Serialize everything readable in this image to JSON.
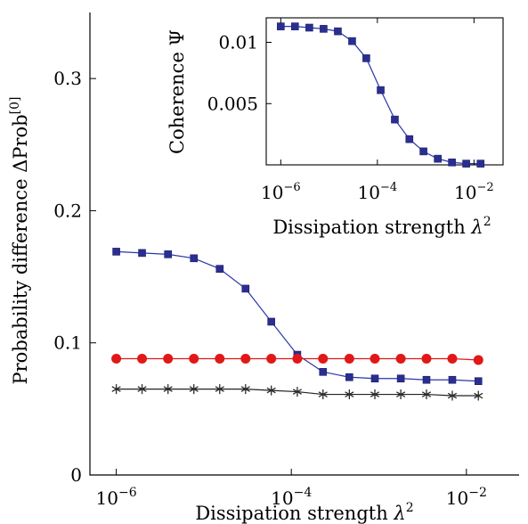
{
  "chart_data": [
    {
      "type": "line",
      "xscale": "log",
      "xlabel": "Dissipation strength λ²",
      "ylabel": "Probability difference ΔProb[0]",
      "xlim": [
        5e-07,
        0.04
      ],
      "ylim": [
        0,
        0.35
      ],
      "x_ticks": [
        {
          "value": 1e-06,
          "base": "10",
          "exp": "−6"
        },
        {
          "value": 0.0001,
          "base": "10",
          "exp": "−4"
        },
        {
          "value": 0.01,
          "base": "10",
          "exp": "−2"
        }
      ],
      "y_ticks": [
        {
          "value": 0,
          "label": "0"
        },
        {
          "value": 0.1,
          "label": "0.1"
        },
        {
          "value": 0.2,
          "label": "0.2"
        },
        {
          "value": 0.3,
          "label": "0.3"
        }
      ],
      "x": [
        1e-06,
        1.97e-06,
        3.9e-06,
        7.7e-06,
        1.52e-05,
        3e-05,
        5.9e-05,
        0.000117,
        0.00023,
        0.00046,
        0.0009,
        0.00178,
        0.0035,
        0.0069,
        0.0137
      ],
      "series": [
        {
          "color": "#2a2f8f",
          "marker": "square",
          "values": [
            0.169,
            0.168,
            0.167,
            0.164,
            0.156,
            0.141,
            0.116,
            0.091,
            0.078,
            0.074,
            0.073,
            0.073,
            0.072,
            0.072,
            0.071
          ]
        },
        {
          "color": "#e01818",
          "marker": "circle",
          "values": [
            0.088,
            0.088,
            0.088,
            0.088,
            0.088,
            0.088,
            0.088,
            0.088,
            0.088,
            0.088,
            0.088,
            0.088,
            0.088,
            0.088,
            0.087
          ]
        },
        {
          "color": "#2b2b2b",
          "marker": "asterisk",
          "values": [
            0.065,
            0.065,
            0.065,
            0.065,
            0.065,
            0.065,
            0.064,
            0.063,
            0.061,
            0.061,
            0.061,
            0.061,
            0.061,
            0.06,
            0.06
          ]
        }
      ]
    },
    {
      "type": "line",
      "xscale": "log",
      "xlabel": "Dissipation strength λ²",
      "ylabel": "Coherence Ψ",
      "xlim": [
        5e-07,
        0.04
      ],
      "ylim": [
        0,
        0.012
      ],
      "x_ticks": [
        {
          "value": 1e-06,
          "base": "10",
          "exp": "−6"
        },
        {
          "value": 0.0001,
          "base": "10",
          "exp": "−4"
        },
        {
          "value": 0.01,
          "base": "10",
          "exp": "−2"
        }
      ],
      "y_ticks": [
        {
          "value": 0.005,
          "label": "0.005"
        },
        {
          "value": 0.01,
          "label": "0.01"
        }
      ],
      "x": [
        1e-06,
        1.97e-06,
        3.9e-06,
        7.7e-06,
        1.52e-05,
        3e-05,
        5.9e-05,
        0.000117,
        0.00023,
        0.00046,
        0.0009,
        0.00178,
        0.0035,
        0.0069,
        0.0137
      ],
      "series": [
        {
          "color": "#2a2f8f",
          "marker": "square",
          "values": [
            0.0113,
            0.0113,
            0.0112,
            0.0111,
            0.0109,
            0.0101,
            0.0087,
            0.0061,
            0.0037,
            0.0021,
            0.0011,
            0.0005,
            0.0002,
            0.0001,
            0.0001
          ]
        }
      ]
    }
  ]
}
